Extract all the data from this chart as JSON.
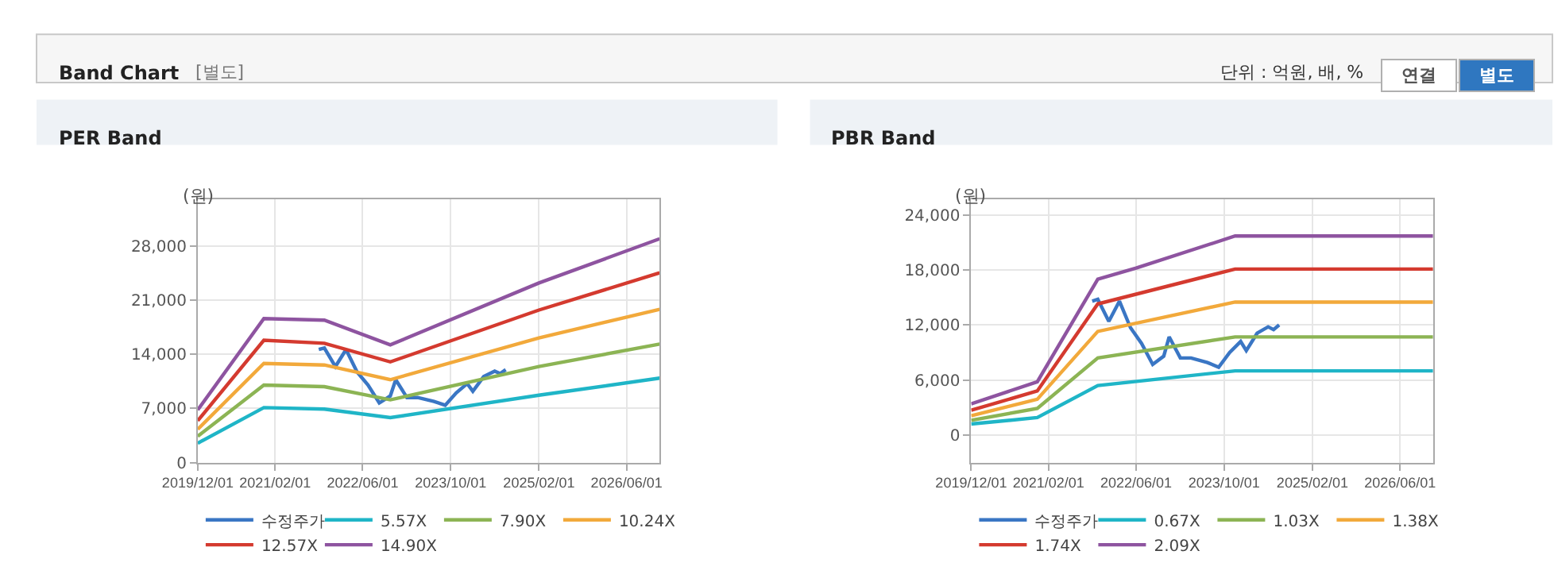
{
  "chart_data": [
    {
      "type": "other",
      "title": "Band Chart",
      "annotations": [
        "[별도]",
        "단위 : 억원, 배, %",
        "연결",
        "별도"
      ]
    },
    {
      "type": "line",
      "title": "PER Band",
      "ylabel": "(원)",
      "grid": true,
      "legend": "bottom",
      "marker": "none",
      "line_style": "solid",
      "xlim": [
        "2019-12-01",
        "2026-12-01"
      ],
      "ylim": [
        0,
        34000
      ],
      "xticks": [
        {
          "value": "2019-12-01",
          "label": "2019/12/01"
        },
        {
          "value": "2021-02-01",
          "label": "2021/02/01"
        },
        {
          "value": "2022-06-01",
          "label": "2022/06/01"
        },
        {
          "value": "2023-10-01",
          "label": "2023/10/01"
        },
        {
          "value": "2025-02-01",
          "label": "2025/02/01"
        },
        {
          "value": "2026-06-01",
          "label": "2026/06/01"
        }
      ],
      "yticks": [
        0,
        {
          "value": 7000,
          "label": "7,000"
        },
        {
          "value": 14000,
          "label": "14,000"
        },
        {
          "value": 21000,
          "label": "21,000"
        },
        {
          "value": 28000,
          "label": "28,000"
        }
      ],
      "series": [
        {
          "name": "수정주가",
          "color": "#3a76c4",
          "x": [
            "2021-10",
            "2021-11",
            "2022-01",
            "2022-03",
            "2022-05",
            "2022-07",
            "2022-09",
            "2022-11",
            "2022-12",
            "2023-02",
            "2023-04",
            "2023-07",
            "2023-09",
            "2023-11",
            "2024-01",
            "2024-02",
            "2024-04",
            "2024-06",
            "2024-07",
            "2024-08"
          ],
          "values": [
            14600,
            14800,
            12400,
            14600,
            11700,
            10000,
            7700,
            8600,
            10700,
            8400,
            8400,
            7900,
            7400,
            9000,
            10200,
            9200,
            11100,
            11800,
            11500,
            12000
          ]
        },
        {
          "name": "5.57X",
          "color": "#1fb5c7",
          "x": [
            "2019-12",
            "2020-12",
            "2021-11",
            "2022-11",
            "2025-02",
            "2026-12"
          ],
          "values": [
            2500,
            7100,
            6900,
            5800,
            8700,
            10900
          ]
        },
        {
          "name": "7.90X",
          "color": "#8cb454",
          "x": [
            "2019-12",
            "2020-12",
            "2021-11",
            "2022-11",
            "2025-02",
            "2026-12"
          ],
          "values": [
            3400,
            10000,
            9800,
            8100,
            12400,
            15300
          ]
        },
        {
          "name": "10.24X",
          "color": "#f2a93b",
          "x": [
            "2019-12",
            "2020-12",
            "2021-11",
            "2022-11",
            "2025-02",
            "2026-12"
          ],
          "values": [
            4300,
            12800,
            12600,
            10700,
            16100,
            19800
          ]
        },
        {
          "name": "12.57X",
          "color": "#d43a2f",
          "x": [
            "2019-12",
            "2020-12",
            "2021-11",
            "2022-11",
            "2025-02",
            "2026-12"
          ],
          "values": [
            5400,
            15800,
            15400,
            13000,
            19700,
            24500
          ]
        },
        {
          "name": "14.90X",
          "color": "#8e54a0",
          "x": [
            "2019-12",
            "2020-12",
            "2021-11",
            "2022-11",
            "2025-02",
            "2026-12"
          ],
          "values": [
            6800,
            18600,
            18400,
            15200,
            23200,
            28900
          ]
        }
      ]
    },
    {
      "type": "line",
      "title": "PBR Band",
      "ylabel": "(원)",
      "grid": true,
      "legend": "bottom",
      "marker": "none",
      "line_style": "solid",
      "xlim": [
        "2019-12-01",
        "2026-12-01"
      ],
      "ylim": [
        -3000,
        25700
      ],
      "xticks": [
        {
          "value": "2019-12-01",
          "label": "2019/12/01"
        },
        {
          "value": "2021-02-01",
          "label": "2021/02/01"
        },
        {
          "value": "2022-06-01",
          "label": "2022/06/01"
        },
        {
          "value": "2023-10-01",
          "label": "2023/10/01"
        },
        {
          "value": "2025-02-01",
          "label": "2025/02/01"
        },
        {
          "value": "2026-06-01",
          "label": "2026/06/01"
        }
      ],
      "yticks": [
        0,
        {
          "value": 6000,
          "label": "6,000"
        },
        {
          "value": 12000,
          "label": "12,000"
        },
        {
          "value": 18000,
          "label": "18,000"
        },
        {
          "value": 24000,
          "label": "24,000"
        }
      ],
      "series": [
        {
          "name": "수정주가",
          "color": "#3a76c4",
          "x": [
            "2021-10",
            "2021-11",
            "2022-01",
            "2022-03",
            "2022-05",
            "2022-07",
            "2022-09",
            "2022-11",
            "2022-12",
            "2023-02",
            "2023-04",
            "2023-07",
            "2023-09",
            "2023-11",
            "2024-01",
            "2024-02",
            "2024-04",
            "2024-06",
            "2024-07",
            "2024-08"
          ],
          "values": [
            14600,
            14800,
            12400,
            14600,
            11700,
            10000,
            7700,
            8600,
            10700,
            8400,
            8400,
            7900,
            7400,
            9000,
            10200,
            9200,
            11100,
            11800,
            11500,
            12000
          ]
        },
        {
          "name": "0.67X",
          "color": "#1fb5c7",
          "x": [
            "2019-12",
            "2020-12",
            "2021-11",
            "2023-12",
            "2026-12"
          ],
          "values": [
            1200,
            1900,
            5400,
            7000,
            7000
          ]
        },
        {
          "name": "1.03X",
          "color": "#8cb454",
          "x": [
            "2019-12",
            "2020-12",
            "2021-11",
            "2023-12",
            "2026-12"
          ],
          "values": [
            1600,
            2900,
            8400,
            10700,
            10700
          ]
        },
        {
          "name": "1.38X",
          "color": "#f2a93b",
          "x": [
            "2019-12",
            "2020-12",
            "2021-11",
            "2023-12",
            "2026-12"
          ],
          "values": [
            2100,
            3900,
            11300,
            14500,
            14500
          ]
        },
        {
          "name": "1.74X",
          "color": "#d43a2f",
          "x": [
            "2019-12",
            "2020-12",
            "2021-11",
            "2023-12",
            "2026-12"
          ],
          "values": [
            2700,
            4800,
            14300,
            18100,
            18100
          ]
        },
        {
          "name": "2.09X",
          "color": "#8e54a0",
          "x": [
            "2019-12",
            "2020-12",
            "2021-11",
            "2022-06",
            "2023-12",
            "2026-12"
          ],
          "values": [
            3400,
            5800,
            17000,
            18200,
            21700,
            21700
          ]
        }
      ]
    }
  ]
}
